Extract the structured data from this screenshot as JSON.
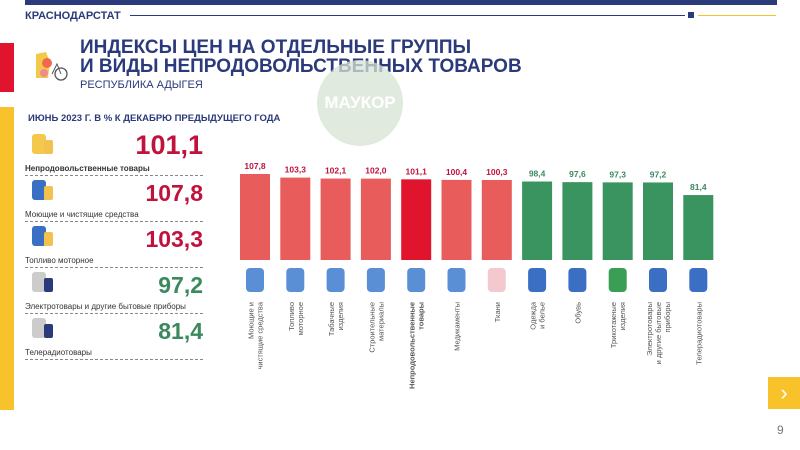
{
  "header": {
    "org": "КРАСНОДАРСТАТ",
    "title_line1": "ИНДЕКСЫ ЦЕН НА ОТДЕЛЬНЫЕ ГРУППЫ",
    "title_line2": "И ВИДЫ НЕПРОДОВОЛЬСТВЕННЫХ ТОВАРОВ",
    "subtitle": "РЕСПУБЛИКА АДЫГЕЯ",
    "period": "ИЮНЬ 2023 Г. В % К ДЕКАБРЮ ПРЕДЫДУЩЕГО ГОДА",
    "watermark": "МАУКОР"
  },
  "colors": {
    "navy": "#2b3a7a",
    "up": "#e85c5c",
    "total": "#e1142e",
    "down": "#3a9460",
    "up_text": "#c0123c",
    "down_text": "#3a8a5e",
    "yellow": "#f8c22a"
  },
  "summary": [
    {
      "label": "Непродовольственные товары",
      "value": "101,1",
      "icon": "bicycle-clothes-icon",
      "trend": "up"
    },
    {
      "label": "Моющие и чистящие средства",
      "value": "107,8",
      "icon": "detergent-icon",
      "trend": "up"
    },
    {
      "label": "Топливо моторное",
      "value": "103,3",
      "icon": "fuel-canister-icon",
      "trend": "up"
    },
    {
      "label": "Электротовары и другие бытовые приборы",
      "value": "97,2",
      "icon": "kettle-icon",
      "trend": "down"
    },
    {
      "label": "Телерадиотовары",
      "value": "81,4",
      "icon": "tv-icon",
      "trend": "down"
    }
  ],
  "chart_data": {
    "type": "bar",
    "ylim": [
      0,
      107.8
    ],
    "categories": [
      "Моющие и чистящие средства",
      "Топливо моторное",
      "Табачные изделия",
      "Строительные материалы",
      "Непродовольственные товары",
      "Медикаменты",
      "Ткани",
      "Одежда и белье",
      "Обувь",
      "Трикотажные изделия",
      "Электротовары и другие бытовые приборы",
      "Телерадиотовары"
    ],
    "label_lines": [
      [
        "Моющие и",
        "чистящие средства"
      ],
      [
        "Топливо",
        "моторное"
      ],
      [
        "Табачные",
        "изделия"
      ],
      [
        "Строительные",
        "материалы"
      ],
      [
        "Непродовольственные",
        "товары"
      ],
      [
        "Медикаменты"
      ],
      [
        "Ткани"
      ],
      [
        "Одежда",
        "и белье"
      ],
      [
        "Обувь"
      ],
      [
        "Трикотажные",
        "изделия"
      ],
      [
        "Электротовары",
        "и другие бытовые",
        "приборы"
      ],
      [
        "Телерадиотовары"
      ]
    ],
    "values": [
      107.8,
      103.3,
      102.1,
      102.0,
      101.1,
      100.4,
      100.3,
      98.4,
      97.6,
      97.3,
      97.2,
      81.4
    ],
    "value_labels": [
      "107,8",
      "103,3",
      "102,1",
      "102,0",
      "101,1",
      "100,4",
      "100,3",
      "98,4",
      "97,6",
      "97,3",
      "97,2",
      "81,4"
    ],
    "icons": [
      "detergent-icon",
      "fuel-canister-icon",
      "tobacco-icon",
      "bricks-paint-icon",
      "bicycle-clothes-icon",
      "medicine-icon",
      "fabric-icon",
      "clothes-icon",
      "boot-icon",
      "knit-hat-icon",
      "kettle-icon",
      "tv-icon"
    ],
    "highlight_index": 4
  },
  "nav": {
    "next": "›",
    "page": "9"
  }
}
